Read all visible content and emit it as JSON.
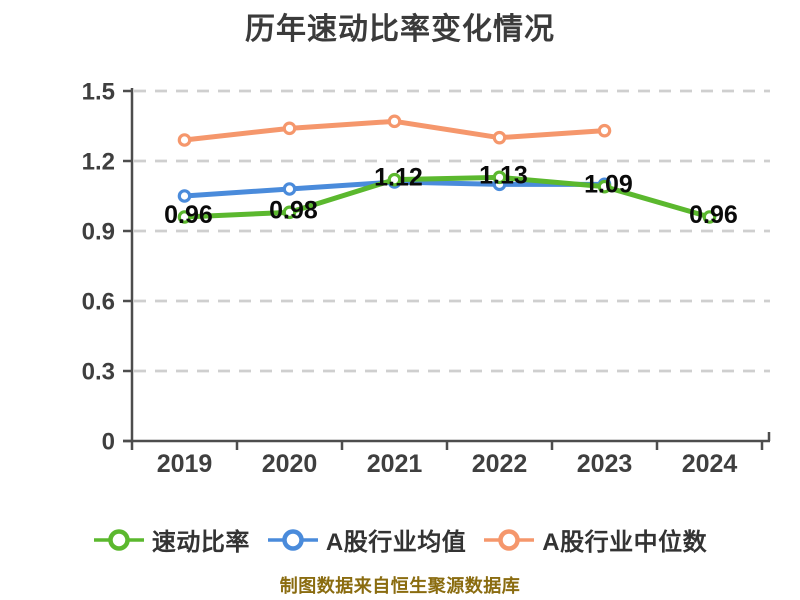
{
  "title": {
    "text": "历年速动比率变化情况",
    "color": "#3b3b3b"
  },
  "footer": {
    "text": "制图数据来自恒生聚源数据库",
    "color": "#8a6c10"
  },
  "chart_data": {
    "type": "line",
    "title": "历年速动比率变化情况",
    "categories": [
      "2019",
      "2020",
      "2021",
      "2022",
      "2023",
      "2024"
    ],
    "series": [
      {
        "name": "速动比率",
        "color": "#5bb82e",
        "values": [
          0.96,
          0.98,
          1.12,
          1.13,
          1.09,
          0.96
        ],
        "point_labels": [
          "0.96",
          "0.98",
          "1.12",
          "1.13",
          "1.09",
          "0.96"
        ]
      },
      {
        "name": "A股行业均值",
        "color": "#4a8bdb",
        "values": [
          1.05,
          1.08,
          1.11,
          1.1,
          1.1,
          null
        ],
        "point_labels": []
      },
      {
        "name": "A股行业中位数",
        "color": "#f5976c",
        "values": [
          1.29,
          1.34,
          1.37,
          1.3,
          1.33,
          null
        ],
        "point_labels": []
      }
    ],
    "ylim": [
      0,
      1.5
    ],
    "yticks": [
      "0",
      "0.3",
      "0.6",
      "0.9",
      "1.2",
      "1.5"
    ],
    "grid": true,
    "grid_color": "#cfcfcf",
    "axis_color": "#4d4d4d",
    "tick_label_color": "#3f3f3f",
    "data_label_color": "#0a0a0a",
    "marker_fill": "#ffffff",
    "legend_position": "bottom"
  }
}
